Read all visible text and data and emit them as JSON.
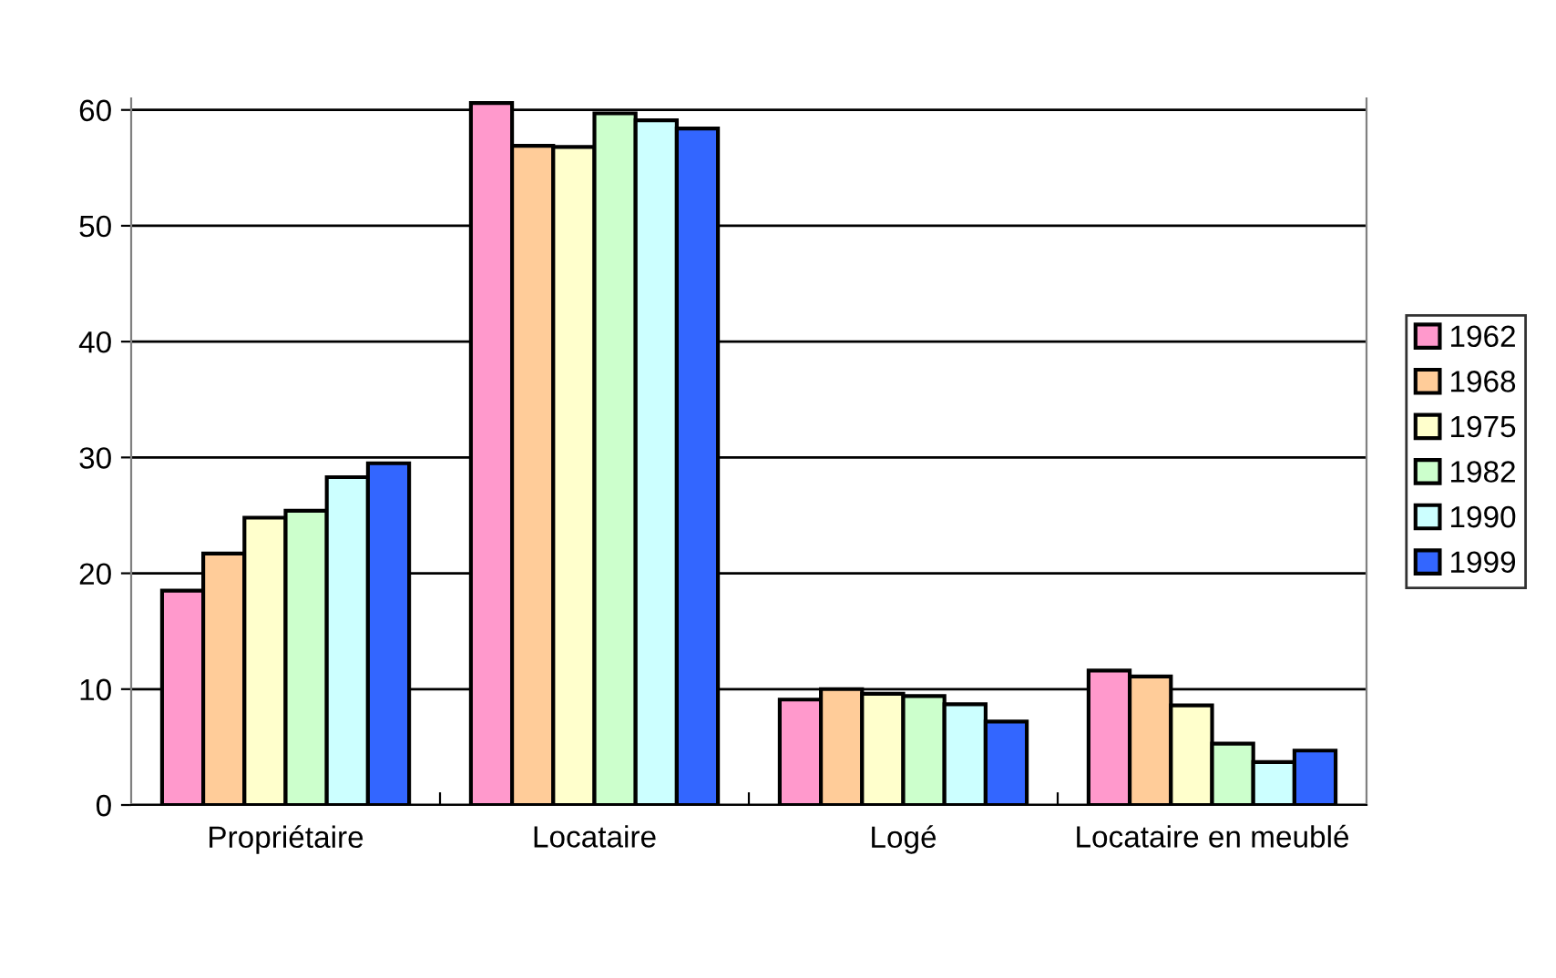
{
  "chart_data": {
    "type": "bar",
    "categories": [
      "Propriétaire",
      "Locataire",
      "Logé",
      "Locataire en meublé"
    ],
    "series": [
      {
        "name": "1962",
        "color": "#ff99cc",
        "values": [
          18.5,
          60.6,
          9.1,
          11.6
        ]
      },
      {
        "name": "1968",
        "color": "#ffcc99",
        "values": [
          21.7,
          56.9,
          10.0,
          11.1
        ]
      },
      {
        "name": "1975",
        "color": "#ffffcc",
        "values": [
          24.8,
          56.8,
          9.6,
          8.6
        ]
      },
      {
        "name": "1982",
        "color": "#ccffcc",
        "values": [
          25.4,
          59.7,
          9.4,
          5.3
        ]
      },
      {
        "name": "1990",
        "color": "#ccffff",
        "values": [
          28.3,
          59.1,
          8.7,
          3.7
        ]
      },
      {
        "name": "1999",
        "color": "#3366ff",
        "values": [
          29.5,
          58.4,
          7.2,
          4.7
        ]
      }
    ],
    "ylim": [
      0,
      61
    ],
    "yticks": [
      0,
      10,
      20,
      30,
      40,
      50,
      60
    ],
    "grid": "y",
    "legend": "right"
  }
}
